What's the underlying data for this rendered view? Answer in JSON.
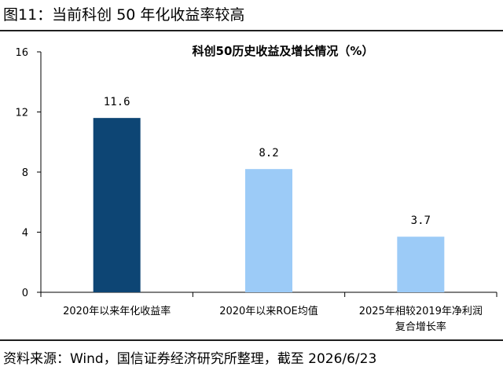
{
  "figure": {
    "title": "图11：当前科创 50 年化收益率较高",
    "source": "资料来源：Wind，国信证券经济研究所整理，截至 2026/6/23"
  },
  "chart_data": {
    "type": "bar",
    "title": "科创50历史收益及增长情况（%）",
    "xlabel": "",
    "ylabel": "",
    "categories": [
      [
        "2020年以来年化收益率"
      ],
      [
        "2020年以来ROE均值"
      ],
      [
        "2025年相较2019年净利润",
        "复合增长率"
      ]
    ],
    "values": [
      11.6,
      8.2,
      3.7
    ],
    "data_labels": [
      "11.6",
      "8.2",
      "3.7"
    ],
    "bar_colors": [
      "#0d4574",
      "#9ccbf7",
      "#9ccbf7"
    ],
    "ylim": [
      0,
      16
    ],
    "yticks": [
      0,
      4,
      8,
      12,
      16
    ],
    "grid": false,
    "legend": "none"
  }
}
